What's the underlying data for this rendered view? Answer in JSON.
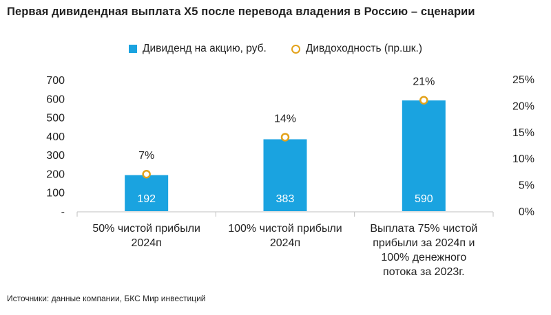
{
  "title": "Первая дивидендная выплата Х5 после перевода владения в Россию – сценарии",
  "source": "Источники: данные компании, БКС Мир инвестиций",
  "colors": {
    "bar": "#1aa3e0",
    "dot_stroke": "#e3a21a",
    "dot_fill": "#ffffff",
    "axis": "#bfbfbf"
  },
  "chart_data": {
    "type": "bar",
    "title": "Первая дивидендная выплата Х5 после перевода владения в Россию – сценарии",
    "categories": [
      [
        "50% чистой прибыли",
        "2024п"
      ],
      [
        "100% чистой прибыли",
        "2024п"
      ],
      [
        "Выплата 75% чистой",
        "прибыли за 2024п и",
        "100% денежного",
        "потока за 2023г."
      ]
    ],
    "series": [
      {
        "name": "Дивиденд на акцию, руб.",
        "type": "bar",
        "axis": "left",
        "values": [
          192,
          383,
          590
        ],
        "labels": [
          "192",
          "383",
          "590"
        ]
      },
      {
        "name": "Дивдоходность (пр.шк.)",
        "type": "scatter",
        "axis": "right",
        "values": [
          7,
          14,
          21
        ],
        "labels": [
          "7%",
          "14%",
          "21%"
        ]
      }
    ],
    "left_axis": {
      "ticks": [
        "-",
        "100",
        "200",
        "300",
        "400",
        "500",
        "600",
        "700"
      ],
      "ylim": [
        0,
        700
      ]
    },
    "right_axis": {
      "ticks": [
        "0%",
        "5%",
        "10%",
        "15%",
        "20%",
        "25%"
      ],
      "ylim": [
        0,
        25
      ]
    },
    "legend_position": "top-center",
    "grid": false
  }
}
